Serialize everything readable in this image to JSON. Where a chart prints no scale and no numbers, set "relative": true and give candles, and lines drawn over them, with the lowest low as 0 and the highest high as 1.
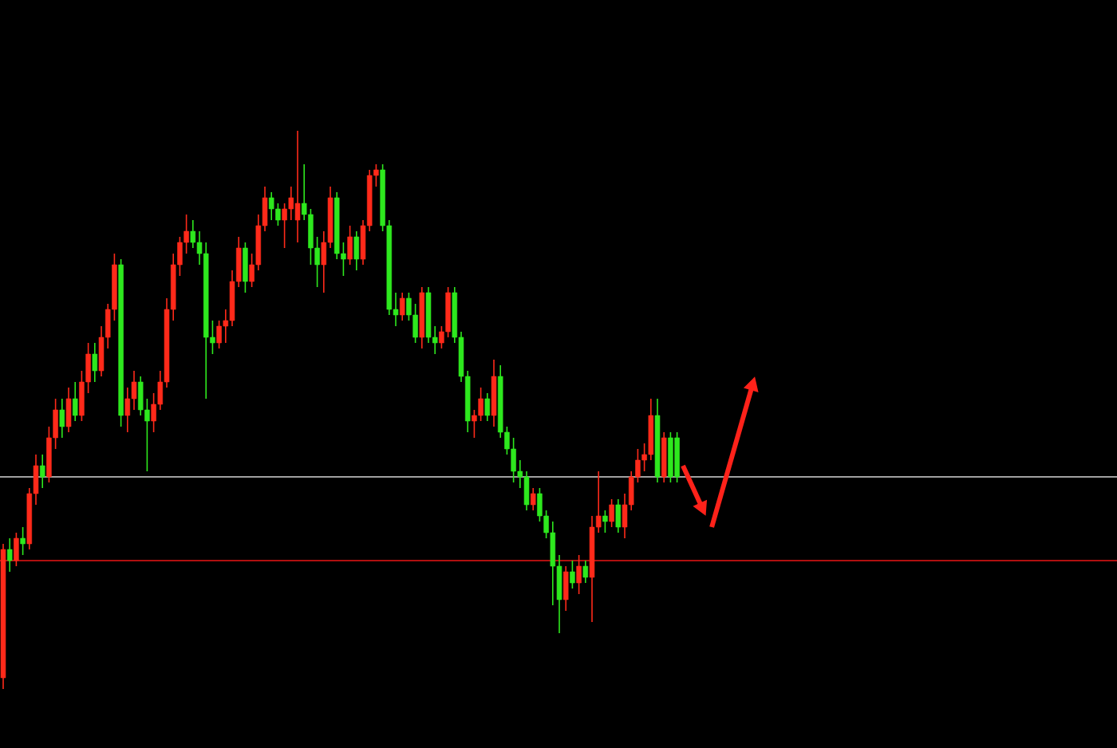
{
  "chart_data": {
    "type": "candlestick",
    "relative": true,
    "categories": [
      null,
      null,
      null,
      null,
      null,
      null,
      null,
      null,
      null,
      null,
      null,
      null,
      null,
      null,
      null,
      null,
      null,
      null,
      null,
      null,
      null,
      null,
      null,
      null,
      null,
      null,
      null,
      null,
      null,
      null,
      null,
      null,
      null,
      null,
      null,
      null,
      null,
      null,
      null,
      null,
      null,
      null,
      null,
      null,
      null,
      null,
      null,
      null,
      null,
      null,
      null,
      null,
      null,
      null,
      null,
      null,
      null,
      null,
      null,
      null,
      null,
      null,
      null,
      null,
      null,
      null,
      null,
      null,
      null,
      null,
      null,
      null,
      null,
      null,
      null,
      null,
      null,
      null,
      null,
      null,
      null,
      null,
      null,
      null,
      null,
      null,
      null,
      null,
      null,
      null,
      null,
      null,
      null,
      null,
      null,
      null,
      null,
      null,
      null,
      null,
      null,
      null,
      null,
      null
    ],
    "ohlc": [
      [
        0.02,
        0.26,
        0,
        0.25
      ],
      [
        0.25,
        0.27,
        0.21,
        0.23
      ],
      [
        0.23,
        0.28,
        0.22,
        0.27
      ],
      [
        0.27,
        0.29,
        0.24,
        0.26
      ],
      [
        0.26,
        0.36,
        0.25,
        0.35
      ],
      [
        0.35,
        0.42,
        0.33,
        0.4
      ],
      [
        0.4,
        0.42,
        0.36,
        0.38
      ],
      [
        0.38,
        0.47,
        0.37,
        0.45
      ],
      [
        0.45,
        0.52,
        0.43,
        0.5
      ],
      [
        0.5,
        0.52,
        0.45,
        0.47
      ],
      [
        0.47,
        0.54,
        0.46,
        0.52
      ],
      [
        0.52,
        0.55,
        0.48,
        0.49
      ],
      [
        0.49,
        0.57,
        0.48,
        0.55
      ],
      [
        0.55,
        0.62,
        0.53,
        0.6
      ],
      [
        0.6,
        0.62,
        0.55,
        0.57
      ],
      [
        0.57,
        0.65,
        0.56,
        0.63
      ],
      [
        0.63,
        0.69,
        0.61,
        0.68
      ],
      [
        0.68,
        0.78,
        0.66,
        0.76
      ],
      [
        0.76,
        0.77,
        0.47,
        0.49
      ],
      [
        0.49,
        0.54,
        0.46,
        0.52
      ],
      [
        0.52,
        0.57,
        0.5,
        0.55
      ],
      [
        0.55,
        0.56,
        0.49,
        0.5
      ],
      [
        0.5,
        0.52,
        0.39,
        0.48
      ],
      [
        0.48,
        0.53,
        0.46,
        0.51
      ],
      [
        0.51,
        0.57,
        0.5,
        0.55
      ],
      [
        0.55,
        0.7,
        0.54,
        0.68
      ],
      [
        0.68,
        0.78,
        0.66,
        0.76
      ],
      [
        0.76,
        0.81,
        0.74,
        0.8
      ],
      [
        0.8,
        0.85,
        0.78,
        0.82
      ],
      [
        0.82,
        0.84,
        0.79,
        0.8
      ],
      [
        0.8,
        0.82,
        0.76,
        0.78
      ],
      [
        0.78,
        0.8,
        0.52,
        0.63
      ],
      [
        0.63,
        0.66,
        0.6,
        0.62
      ],
      [
        0.62,
        0.66,
        0.61,
        0.65
      ],
      [
        0.65,
        0.68,
        0.62,
        0.66
      ],
      [
        0.66,
        0.75,
        0.65,
        0.73
      ],
      [
        0.73,
        0.81,
        0.72,
        0.79
      ],
      [
        0.79,
        0.8,
        0.71,
        0.73
      ],
      [
        0.73,
        0.78,
        0.72,
        0.76
      ],
      [
        0.76,
        0.85,
        0.75,
        0.83
      ],
      [
        0.83,
        0.9,
        0.82,
        0.88
      ],
      [
        0.88,
        0.89,
        0.84,
        0.86
      ],
      [
        0.86,
        0.87,
        0.83,
        0.84
      ],
      [
        0.84,
        0.87,
        0.79,
        0.86
      ],
      [
        0.86,
        0.9,
        0.84,
        0.88
      ],
      [
        0.84,
        1.0,
        0.8,
        0.87
      ],
      [
        0.87,
        0.94,
        0.84,
        0.85
      ],
      [
        0.85,
        0.86,
        0.76,
        0.79
      ],
      [
        0.79,
        0.81,
        0.72,
        0.76
      ],
      [
        0.76,
        0.82,
        0.71,
        0.8
      ],
      [
        0.8,
        0.9,
        0.79,
        0.88
      ],
      [
        0.88,
        0.89,
        0.77,
        0.78
      ],
      [
        0.78,
        0.8,
        0.74,
        0.77
      ],
      [
        0.77,
        0.83,
        0.76,
        0.81
      ],
      [
        0.81,
        0.82,
        0.75,
        0.77
      ],
      [
        0.77,
        0.84,
        0.76,
        0.83
      ],
      [
        0.83,
        0.93,
        0.82,
        0.92
      ],
      [
        0.92,
        0.94,
        0.9,
        0.93
      ],
      [
        0.93,
        0.94,
        0.82,
        0.83
      ],
      [
        0.83,
        0.84,
        0.67,
        0.68
      ],
      [
        0.68,
        0.71,
        0.65,
        0.67
      ],
      [
        0.67,
        0.71,
        0.66,
        0.7
      ],
      [
        0.7,
        0.71,
        0.66,
        0.67
      ],
      [
        0.67,
        0.69,
        0.62,
        0.63
      ],
      [
        0.63,
        0.72,
        0.61,
        0.71
      ],
      [
        0.71,
        0.72,
        0.62,
        0.63
      ],
      [
        0.63,
        0.65,
        0.6,
        0.62
      ],
      [
        0.62,
        0.65,
        0.61,
        0.64
      ],
      [
        0.64,
        0.72,
        0.63,
        0.71
      ],
      [
        0.71,
        0.72,
        0.62,
        0.63
      ],
      [
        0.63,
        0.64,
        0.55,
        0.56
      ],
      [
        0.56,
        0.57,
        0.46,
        0.48
      ],
      [
        0.48,
        0.5,
        0.45,
        0.49
      ],
      [
        0.49,
        0.54,
        0.48,
        0.52
      ],
      [
        0.52,
        0.53,
        0.48,
        0.49
      ],
      [
        0.49,
        0.59,
        0.47,
        0.56
      ],
      [
        0.56,
        0.58,
        0.45,
        0.46
      ],
      [
        0.46,
        0.47,
        0.42,
        0.43
      ],
      [
        0.43,
        0.45,
        0.37,
        0.39
      ],
      [
        0.39,
        0.41,
        0.36,
        0.38
      ],
      [
        0.38,
        0.39,
        0.32,
        0.33
      ],
      [
        0.33,
        0.36,
        0.32,
        0.35
      ],
      [
        0.35,
        0.36,
        0.3,
        0.31
      ],
      [
        0.31,
        0.32,
        0.27,
        0.28
      ],
      [
        0.28,
        0.3,
        0.15,
        0.22
      ],
      [
        0.22,
        0.24,
        0.1,
        0.16
      ],
      [
        0.16,
        0.22,
        0.14,
        0.21
      ],
      [
        0.21,
        0.23,
        0.18,
        0.19
      ],
      [
        0.19,
        0.24,
        0.17,
        0.22
      ],
      [
        0.22,
        0.23,
        0.19,
        0.2
      ],
      [
        0.2,
        0.31,
        0.12,
        0.29
      ],
      [
        0.29,
        0.39,
        0.28,
        0.31
      ],
      [
        0.31,
        0.32,
        0.28,
        0.3
      ],
      [
        0.3,
        0.34,
        0.29,
        0.33
      ],
      [
        0.33,
        0.34,
        0.28,
        0.29
      ],
      [
        0.29,
        0.35,
        0.27,
        0.33
      ],
      [
        0.33,
        0.39,
        0.32,
        0.38
      ],
      [
        0.38,
        0.43,
        0.37,
        0.41
      ],
      [
        0.41,
        0.44,
        0.39,
        0.42
      ],
      [
        0.42,
        0.52,
        0.41,
        0.49
      ],
      [
        0.49,
        0.52,
        0.37,
        0.38
      ],
      [
        0.38,
        0.46,
        0.37,
        0.45
      ],
      [
        0.45,
        0.46,
        0.37,
        0.38
      ],
      [
        0.45,
        0.46,
        0.37,
        0.38
      ]
    ],
    "colors": [
      "#ff2a1a",
      "#2ee81e",
      "#ff2a1a",
      "#2ee81e",
      "#ff2a1a",
      "#ff2a1a",
      "#2ee81e",
      "#ff2a1a",
      "#ff2a1a",
      "#2ee81e",
      "#ff2a1a",
      "#2ee81e",
      "#ff2a1a",
      "#ff2a1a",
      "#2ee81e",
      "#ff2a1a",
      "#ff2a1a",
      "#ff2a1a",
      "#2ee81e",
      "#ff2a1a",
      "#ff2a1a",
      "#2ee81e",
      "#2ee81e",
      "#ff2a1a",
      "#ff2a1a",
      "#ff2a1a",
      "#ff2a1a",
      "#ff2a1a",
      "#ff2a1a",
      "#2ee81e",
      "#2ee81e",
      "#2ee81e",
      "#2ee81e",
      "#ff2a1a",
      "#ff2a1a",
      "#ff2a1a",
      "#ff2a1a",
      "#2ee81e",
      "#ff2a1a",
      "#ff2a1a",
      "#ff2a1a",
      "#2ee81e",
      "#2ee81e",
      "#ff2a1a",
      "#ff2a1a",
      "#ff2a1a",
      "#2ee81e",
      "#2ee81e",
      "#2ee81e",
      "#ff2a1a",
      "#ff2a1a",
      "#2ee81e",
      "#2ee81e",
      "#ff2a1a",
      "#2ee81e",
      "#ff2a1a",
      "#ff2a1a",
      "#ff2a1a",
      "#2ee81e",
      "#2ee81e",
      "#2ee81e",
      "#ff2a1a",
      "#2ee81e",
      "#2ee81e",
      "#ff2a1a",
      "#2ee81e",
      "#2ee81e",
      "#ff2a1a",
      "#ff2a1a",
      "#2ee81e",
      "#2ee81e",
      "#2ee81e",
      "#ff2a1a",
      "#ff2a1a",
      "#2ee81e",
      "#ff2a1a",
      "#2ee81e",
      "#2ee81e",
      "#2ee81e",
      "#2ee81e",
      "#2ee81e",
      "#ff2a1a",
      "#2ee81e",
      "#2ee81e",
      "#2ee81e",
      "#2ee81e",
      "#ff2a1a",
      "#2ee81e",
      "#ff2a1a",
      "#2ee81e",
      "#ff2a1a",
      "#ff2a1a",
      "#2ee81e",
      "#ff2a1a",
      "#2ee81e",
      "#ff2a1a",
      "#ff2a1a",
      "#ff2a1a",
      "#ff2a1a",
      "#ff2a1a",
      "#2ee81e",
      "#ff2a1a",
      "#2ee81e",
      "#2ee81e"
    ],
    "ref_lines": [
      {
        "axis": "y",
        "value": 0.38,
        "color": "#a0a0a0"
      },
      {
        "axis": "y",
        "value": 0.23,
        "color": "#b01010"
      }
    ]
  }
}
